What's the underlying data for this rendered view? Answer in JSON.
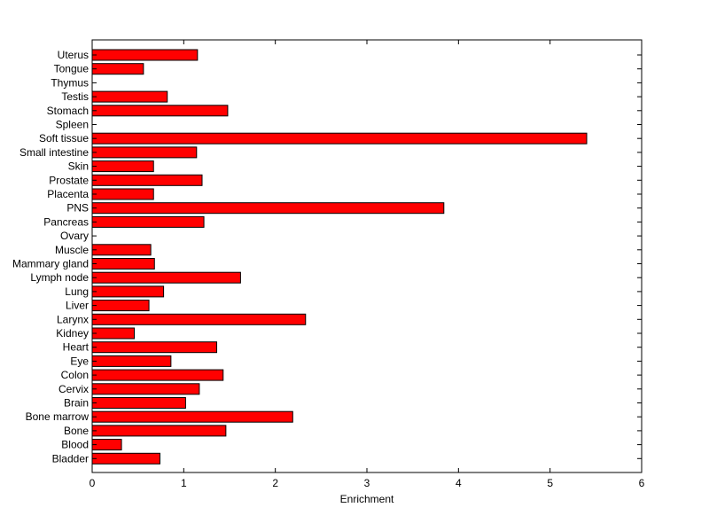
{
  "chart_data": {
    "type": "bar",
    "orientation": "horizontal",
    "title": "",
    "xlabel": "Enrichment",
    "ylabel": "",
    "xlim": [
      0,
      6
    ],
    "xticks": [
      0,
      1,
      2,
      3,
      4,
      5,
      6
    ],
    "grid": false,
    "bar_color": "#ff0000",
    "categories": [
      "Bladder",
      "Blood",
      "Bone",
      "Bone marrow",
      "Brain",
      "Cervix",
      "Colon",
      "Eye",
      "Heart",
      "Kidney",
      "Larynx",
      "Liver",
      "Lung",
      "Lymph node",
      "Mammary gland",
      "Muscle",
      "Ovary",
      "Pancreas",
      "PNS",
      "Placenta",
      "Prostate",
      "Skin",
      "Small intestine",
      "Soft tissue",
      "Spleen",
      "Stomach",
      "Testis",
      "Thymus",
      "Tongue",
      "Uterus"
    ],
    "values": [
      0.74,
      0.32,
      1.46,
      2.19,
      1.02,
      1.17,
      1.43,
      0.86,
      1.36,
      0.46,
      2.33,
      0.62,
      0.78,
      1.62,
      0.68,
      0.64,
      0,
      1.22,
      3.84,
      0.67,
      1.2,
      0.67,
      1.14,
      5.4,
      0,
      1.48,
      0.82,
      0,
      0.56,
      1.15
    ]
  }
}
